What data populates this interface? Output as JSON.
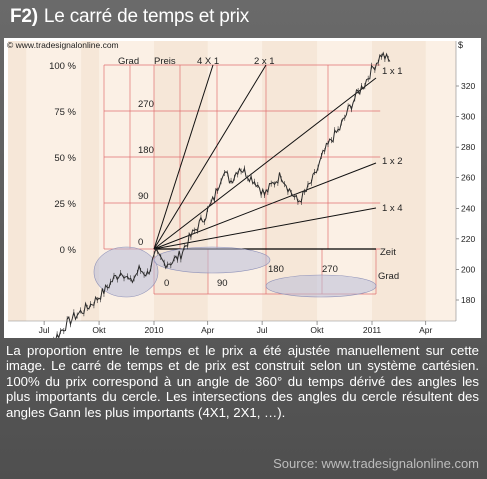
{
  "header": {
    "number": "F2)",
    "title": "Le carré de temps et prix"
  },
  "chart_data": {
    "type": "line",
    "watermark": "© www.tradesignalonline.com",
    "series": [
      {
        "x": [
          "2009-06-08",
          "2009-06-22",
          "2009-07-06",
          "2009-07-20",
          "2009-08-03",
          "2009-08-17",
          "2009-08-31",
          "2009-09-14",
          "2009-09-28",
          "2009-10-12",
          "2009-10-26",
          "2009-11-09",
          "2009-11-23",
          "2009-12-07",
          "2009-12-21",
          "2010-01-04",
          "2010-01-18",
          "2010-02-01",
          "2010-02-15",
          "2010-03-01",
          "2010-03-15",
          "2010-03-29",
          "2010-04-12",
          "2010-04-26",
          "2010-05-10",
          "2010-05-24",
          "2010-06-07",
          "2010-06-21",
          "2010-07-05",
          "2010-07-19",
          "2010-08-02",
          "2010-08-16",
          "2010-08-30",
          "2010-09-13",
          "2010-09-27",
          "2010-10-11",
          "2010-10-25",
          "2010-11-08",
          "2010-11-22",
          "2010-12-06",
          "2010-12-20",
          "2011-01-03",
          "2011-01-17",
          "2011-01-31"
        ],
        "values": [
          141,
          146,
          150,
          155,
          162,
          168,
          172,
          176,
          181,
          187,
          194,
          199,
          191,
          200,
          197,
          210,
          204,
          205,
          210,
          220,
          228,
          236,
          247,
          264,
          258,
          267,
          262,
          257,
          249,
          256,
          262,
          252,
          244,
          251,
          261,
          275,
          285,
          292,
          304,
          314,
          322,
          332,
          341,
          336
        ]
      }
    ],
    "y_axis": {
      "label": "$",
      "ticks": [
        180,
        200,
        220,
        240,
        260,
        280,
        300,
        320
      ]
    },
    "x_axis": {
      "ticks": [
        "Jul",
        "Okt",
        "2010",
        "Apr",
        "Jul",
        "Okt",
        "2011",
        "Apr"
      ]
    },
    "price_scale": {
      "label": "Preis",
      "ticks": [
        "0 %",
        "25 %",
        "50 %",
        "75 %",
        "100 %"
      ]
    },
    "angle_scale": {
      "label": "Grad",
      "ticks": [
        "0",
        "90",
        "180",
        "270"
      ]
    },
    "time_scale": {
      "label": "Grad",
      "ticks": [
        "0",
        "90",
        "180",
        "270"
      ]
    },
    "zeit_label": "Zeit",
    "gann_lines": [
      "4 X 1",
      "2 x 1",
      "1 x 1",
      "1 x 2",
      "1 x 4"
    ],
    "colors": {
      "background": "#f6e7d8",
      "band": "#fbf0e5",
      "grid": "#e07070",
      "price": "#2a2a2a",
      "fan": "#111111",
      "circle": "#b9bdd8"
    }
  },
  "description": "La proportion entre le temps et le prix a été ajustée manuellement sur cette image. Le carré de temps et de prix est construit selon un système cartésien. 100% du prix correspond à un angle de 360° du temps dérivé des angles les plus importants du cercle. Les intersections des angles du cercle résultent des angles Gann les plus importants (4X1, 2X1, …).",
  "source": "Source: www.tradesignalonline.com"
}
